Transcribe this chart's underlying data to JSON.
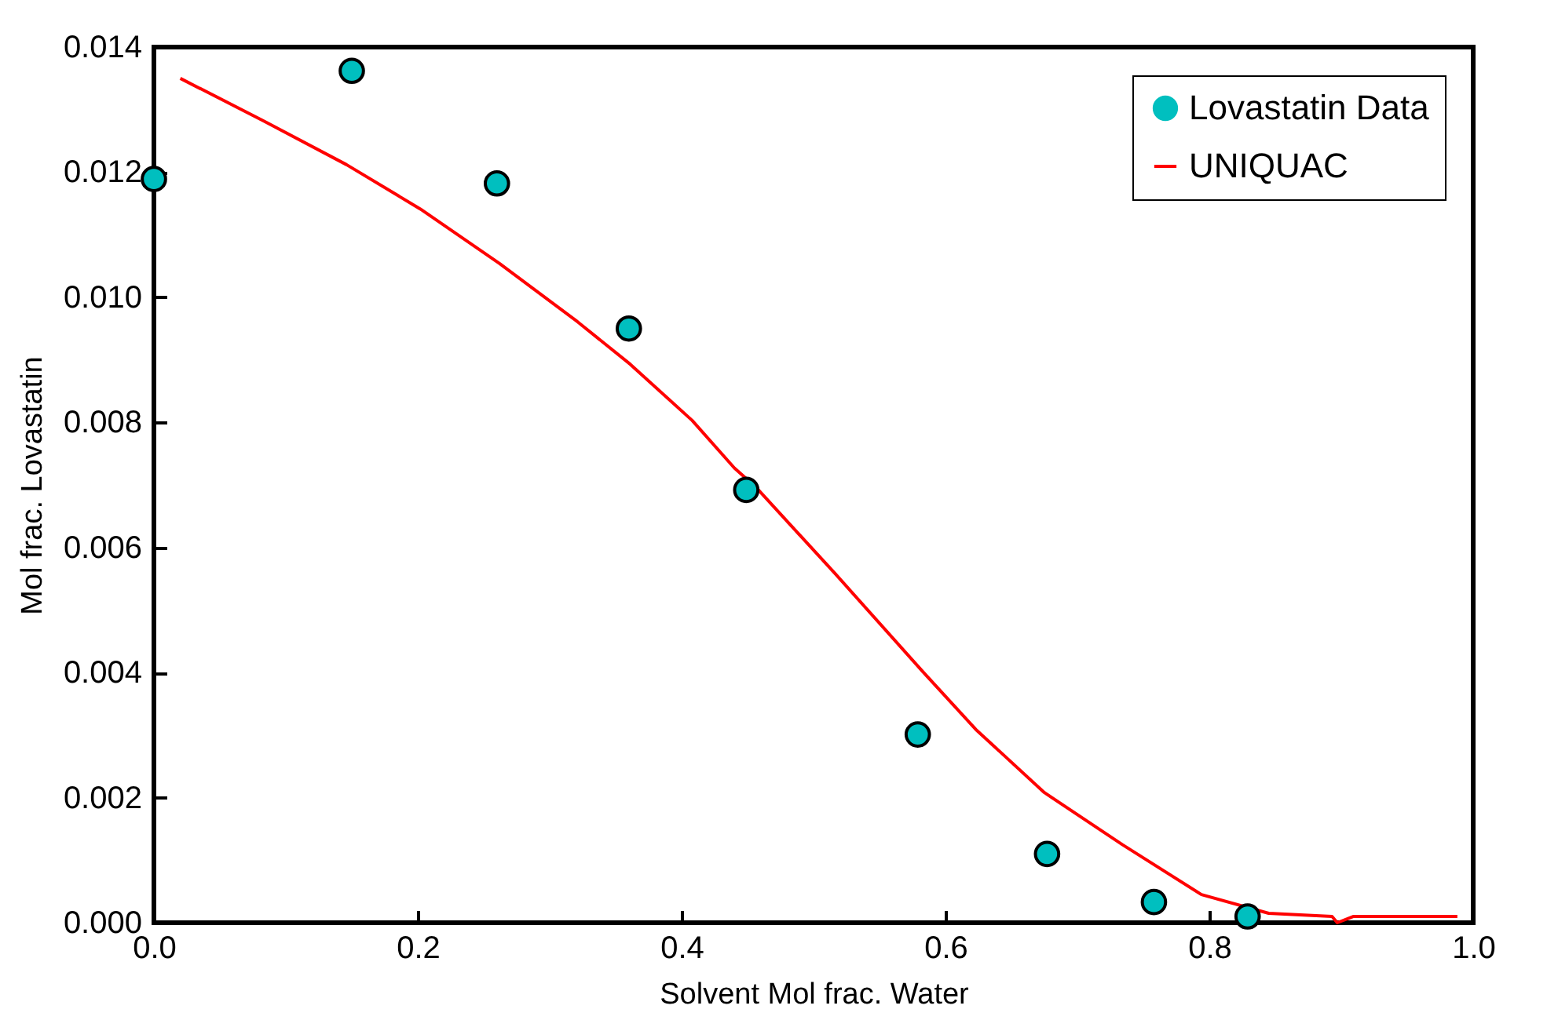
{
  "chart_data": {
    "type": "scatter",
    "xlabel": "Solvent Mol frac. Water",
    "ylabel": "Mol frac. Lovastatin",
    "xlim": [
      0,
      1
    ],
    "ylim": [
      0,
      0.014
    ],
    "xticks": [
      {
        "value": 0,
        "label": "0.0"
      },
      0.2,
      0.4,
      0.6,
      0.8,
      {
        "value": 1,
        "label": "1.0"
      }
    ],
    "yticks": [
      {
        "value": 0,
        "label": "0.000"
      },
      0.002,
      0.004,
      0.006,
      0.008,
      {
        "value": 0.01,
        "label": "0.010"
      },
      0.012,
      0.014
    ],
    "grid": false,
    "legend": "top right",
    "series": [
      {
        "name": "Lovastatin Data",
        "marker": "circle",
        "color": "#00bfbf",
        "x": [
          0,
          0.15,
          0.26,
          0.36,
          0.449,
          0.579,
          0.677,
          0.758,
          0.829
        ],
        "values": [
          0.01189,
          0.01362,
          0.01182,
          0.0095,
          0.00692,
          0.00301,
          0.0011,
          0.00033,
          0.0001
        ]
      },
      {
        "name": "UNIQUAC",
        "type": "line",
        "color": "#ff0000",
        "x": [
          0.02,
          0.083,
          0.146,
          0.202,
          0.262,
          0.321,
          0.361,
          0.408,
          0.44,
          0.456,
          0.516,
          0.583,
          0.623,
          0.675,
          0.734,
          0.794,
          0.845,
          0.893,
          0.897,
          0.909,
          0.988
        ],
        "values": [
          0.0135,
          0.01282,
          0.01212,
          0.01141,
          0.01054,
          0.00961,
          0.00893,
          0.00803,
          0.00727,
          0.00697,
          0.00559,
          0.00401,
          0.00309,
          0.00208,
          0.00125,
          0.00045,
          0.00015,
          0.0001,
          0,
          0.0001,
          0.0001
        ]
      }
    ]
  }
}
